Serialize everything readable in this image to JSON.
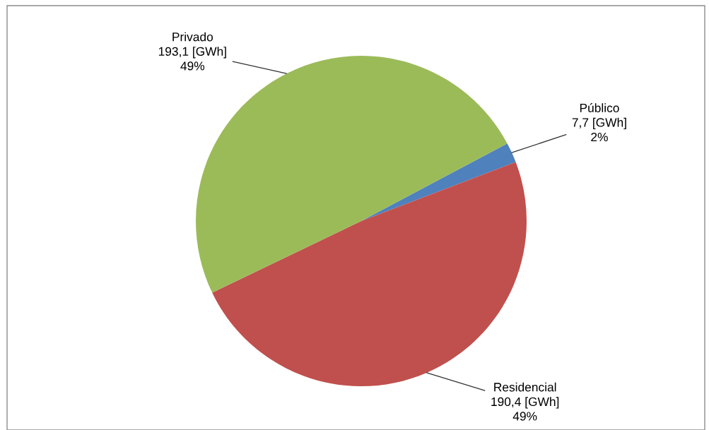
{
  "chart_data": {
    "type": "pie",
    "categories": [
      "Público",
      "Residencial",
      "Privado"
    ],
    "values": [
      7.7,
      190.4,
      193.1
    ],
    "colors": [
      "#4f81bd",
      "#c0504d",
      "#9bbb59"
    ],
    "value_labels": [
      "7,7 [GWh]\n2%",
      "190,4 [GWh]\n49%",
      "193,1 [GWh]\n49%"
    ],
    "legend": false
  }
}
